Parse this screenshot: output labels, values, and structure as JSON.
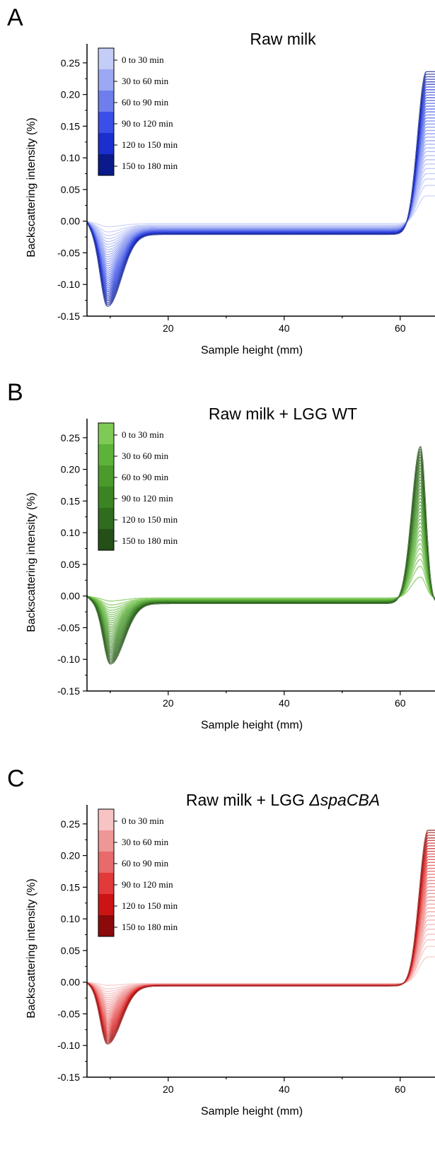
{
  "chart_data": [
    {
      "panel_label": "A",
      "type": "line",
      "title": "Raw milk",
      "title_italic": "",
      "xlabel": "Sample height (mm)",
      "ylabel": "Backscattering intensity (%)",
      "xlim": [
        6,
        66
      ],
      "ylim": [
        -0.15,
        0.28
      ],
      "x_ticks": [
        20,
        40,
        60
      ],
      "y_ticks": [
        -0.15,
        -0.1,
        -0.05,
        0.0,
        0.05,
        0.1,
        0.15,
        0.2,
        0.25
      ],
      "y_tick_labels": [
        "-0.15",
        "-0.10",
        "-0.05",
        "0.00",
        "0.05",
        "0.10",
        "0.15",
        "0.20",
        "0.25"
      ],
      "legend_position": "top-left",
      "legend": [
        "0 to 30 min",
        "30 to 60 min",
        "60 to 90 min",
        "90 to 120 min",
        "120 to 150 min",
        "150 to 180 min"
      ],
      "legend_colors": [
        "#c4ccf8",
        "#9ba8f3",
        "#6e7fed",
        "#3a4fe8",
        "#1b2fcf",
        "#0b1a8a"
      ],
      "series_count": 36,
      "curve_model": {
        "dip_depth_range": [
          0.005,
          0.115
        ],
        "dip_position_mm": 9.5,
        "plateau_range": [
          -0.004,
          -0.021
        ],
        "peak_height_range": [
          0.04,
          0.236
        ],
        "peak_position_mm": 64.5,
        "peak_shape": "edge-rise"
      }
    },
    {
      "panel_label": "B",
      "type": "line",
      "title": "Raw milk + LGG WT",
      "title_italic": "",
      "xlabel": "Sample height (mm)",
      "ylabel": "Backscattering intensity (%)",
      "xlim": [
        6,
        66
      ],
      "ylim": [
        -0.15,
        0.28
      ],
      "x_ticks": [
        20,
        40,
        60
      ],
      "y_ticks": [
        -0.15,
        -0.1,
        -0.05,
        0.0,
        0.05,
        0.1,
        0.15,
        0.2,
        0.25
      ],
      "y_tick_labels": [
        "-0.15",
        "-0.10",
        "-0.05",
        "0.00",
        "0.05",
        "0.10",
        "0.15",
        "0.20",
        "0.25"
      ],
      "legend_position": "top-left",
      "legend": [
        "0 to 30 min",
        "30 to 60 min",
        "60 to 90 min",
        "90 to 120 min",
        "120 to 150 min",
        "150 to 180 min"
      ],
      "legend_colors": [
        "#7fca55",
        "#5db33a",
        "#4a9a2c",
        "#3b8423",
        "#2f6c1d",
        "#244f17"
      ],
      "series_count": 36,
      "curve_model": {
        "dip_depth_range": [
          0.005,
          0.096
        ],
        "dip_position_mm": 10,
        "plateau_range": [
          -0.003,
          -0.012
        ],
        "peak_height_range": [
          0.03,
          0.236
        ],
        "peak_position_mm": 63.5,
        "peak_shape": "narrow-peak"
      }
    },
    {
      "panel_label": "C",
      "type": "line",
      "title": "Raw milk + LGG ",
      "title_italic": "ΔspaCBA",
      "xlabel": "Sample height (mm)",
      "ylabel": "Backscattering intensity (%)",
      "xlim": [
        6,
        66
      ],
      "ylim": [
        -0.15,
        0.28
      ],
      "x_ticks": [
        20,
        40,
        60
      ],
      "y_ticks": [
        -0.15,
        -0.1,
        -0.05,
        0.0,
        0.05,
        0.1,
        0.15,
        0.2,
        0.25
      ],
      "y_tick_labels": [
        "-0.15",
        "-0.10",
        "-0.05",
        "0.00",
        "0.05",
        "0.10",
        "0.15",
        "0.20",
        "0.25"
      ],
      "legend_position": "top-left",
      "legend": [
        "0 to 30 min",
        "30 to 60 min",
        "60 to 90 min",
        "90 to 120 min",
        "120 to 150 min",
        "150 to 180 min"
      ],
      "legend_colors": [
        "#f7c3c3",
        "#ef9696",
        "#e86a6a",
        "#e23a3a",
        "#cc1414",
        "#8c0a0a"
      ],
      "series_count": 36,
      "curve_model": {
        "dip_depth_range": [
          0.003,
          0.092
        ],
        "dip_position_mm": 9.5,
        "plateau_range": [
          -0.002,
          -0.006
        ],
        "peak_height_range": [
          0.04,
          0.24
        ],
        "peak_position_mm": 64.8,
        "peak_shape": "edge-rise"
      }
    }
  ]
}
